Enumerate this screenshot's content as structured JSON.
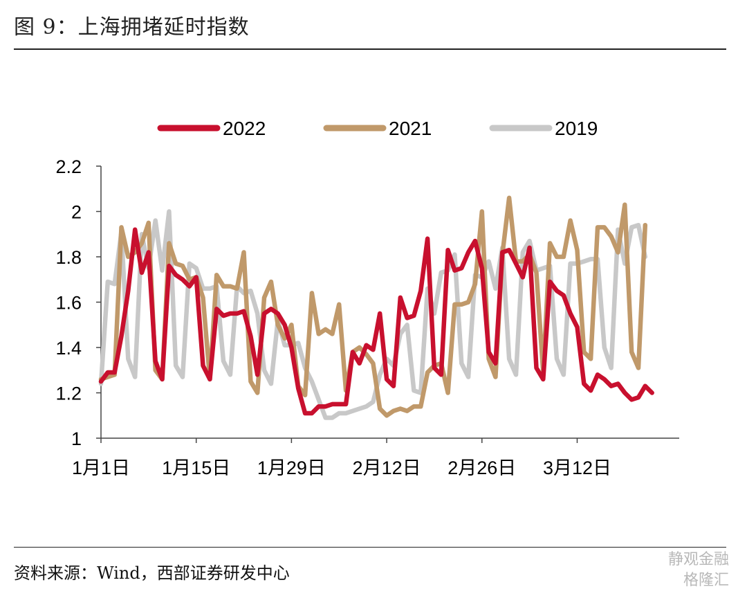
{
  "title": "图 9：上海拥堵延时指数",
  "source": "资料来源：Wind，西部证券研发中心",
  "watermark": {
    "line1": "静观金融",
    "line2": "格隆汇"
  },
  "chart_data": {
    "type": "line",
    "title": "",
    "xlabel": "",
    "ylabel": "",
    "ylim": [
      1,
      2.2
    ],
    "yticks": [
      1,
      1.2,
      1.4,
      1.6,
      1.8,
      2,
      2.2
    ],
    "ytick_labels": [
      "1",
      "1.2",
      "1.4",
      "1.6",
      "1.8",
      "2",
      "2.2"
    ],
    "xrange_days": [
      1,
      86
    ],
    "xticks": [
      {
        "day": 1,
        "label": "1月1日"
      },
      {
        "day": 15,
        "label": "1月15日"
      },
      {
        "day": 29,
        "label": "1月29日"
      },
      {
        "day": 43,
        "label": "2月12日"
      },
      {
        "day": 57,
        "label": "2月26日"
      },
      {
        "day": 71,
        "label": "3月12日"
      }
    ],
    "grid": false,
    "legend_position": "top",
    "series": [
      {
        "name": "2022",
        "color": "#c8102e",
        "values": [
          1.25,
          1.29,
          1.29,
          1.45,
          1.65,
          1.92,
          1.73,
          1.82,
          1.34,
          1.26,
          1.76,
          1.72,
          1.7,
          1.67,
          1.71,
          1.32,
          1.26,
          1.57,
          1.54,
          1.55,
          1.55,
          1.56,
          1.45,
          1.28,
          1.55,
          1.57,
          1.55,
          1.5,
          1.4,
          1.22,
          1.11,
          1.11,
          1.14,
          1.14,
          1.15,
          1.15,
          1.15,
          1.38,
          1.33,
          1.41,
          1.39,
          1.55,
          1.26,
          1.23,
          1.62,
          1.53,
          1.54,
          1.65,
          1.88,
          1.31,
          1.28,
          1.83,
          1.74,
          1.75,
          1.82,
          1.87,
          1.75,
          1.38,
          1.33,
          1.82,
          1.83,
          1.77,
          1.71,
          1.84,
          1.31,
          1.26,
          1.69,
          1.65,
          1.63,
          1.55,
          1.49,
          1.24,
          1.21,
          1.28,
          1.26,
          1.23,
          1.24,
          1.2,
          1.17,
          1.18,
          1.23,
          1.2
        ]
      },
      {
        "name": "2021",
        "color": "#c0996a",
        "values": [
          1.26,
          1.27,
          1.28,
          1.93,
          1.8,
          1.82,
          1.86,
          1.95,
          1.3,
          1.26,
          1.86,
          1.77,
          1.76,
          1.7,
          1.71,
          1.62,
          1.26,
          1.72,
          1.67,
          1.67,
          1.66,
          1.82,
          1.25,
          1.2,
          1.62,
          1.69,
          1.5,
          1.44,
          1.5,
          1.23,
          1.19,
          1.64,
          1.46,
          1.48,
          1.46,
          1.59,
          1.21,
          1.38,
          1.4,
          1.37,
          1.33,
          1.13,
          1.1,
          1.12,
          1.13,
          1.12,
          1.14,
          1.14,
          1.29,
          1.32,
          1.33,
          1.2,
          1.59,
          1.59,
          1.6,
          1.68,
          2.0,
          1.35,
          1.27,
          1.81,
          2.06,
          1.78,
          1.78,
          1.81,
          1.73,
          1.29,
          1.86,
          1.8,
          1.8,
          1.96,
          1.83,
          1.38,
          1.35,
          1.93,
          1.93,
          1.89,
          1.82,
          2.03,
          1.38,
          1.31,
          1.94
        ]
      },
      {
        "name": "2019",
        "color": "#c8c8c8",
        "values": [
          1.24,
          1.69,
          1.68,
          1.91,
          1.35,
          1.27,
          1.9,
          1.75,
          1.96,
          1.74,
          2.0,
          1.32,
          1.27,
          1.77,
          1.75,
          1.66,
          1.66,
          1.67,
          1.34,
          1.28,
          1.67,
          1.64,
          1.65,
          1.55,
          1.3,
          1.24,
          1.52,
          1.41,
          1.41,
          1.42,
          1.31,
          1.25,
          1.17,
          1.09,
          1.09,
          1.11,
          1.11,
          1.12,
          1.13,
          1.14,
          1.16,
          1.28,
          1.35,
          1.32,
          1.46,
          1.5,
          1.21,
          1.2,
          1.66,
          1.55,
          1.73,
          1.74,
          1.81,
          1.33,
          1.27,
          1.72,
          1.71,
          1.78,
          1.66,
          1.84,
          1.35,
          1.28,
          1.82,
          1.87,
          1.74,
          1.75,
          1.76,
          1.35,
          1.28,
          1.77,
          1.77,
          1.78,
          1.79,
          1.79,
          1.4,
          1.31,
          1.92,
          1.77,
          1.93,
          1.94,
          1.8
        ]
      }
    ]
  }
}
